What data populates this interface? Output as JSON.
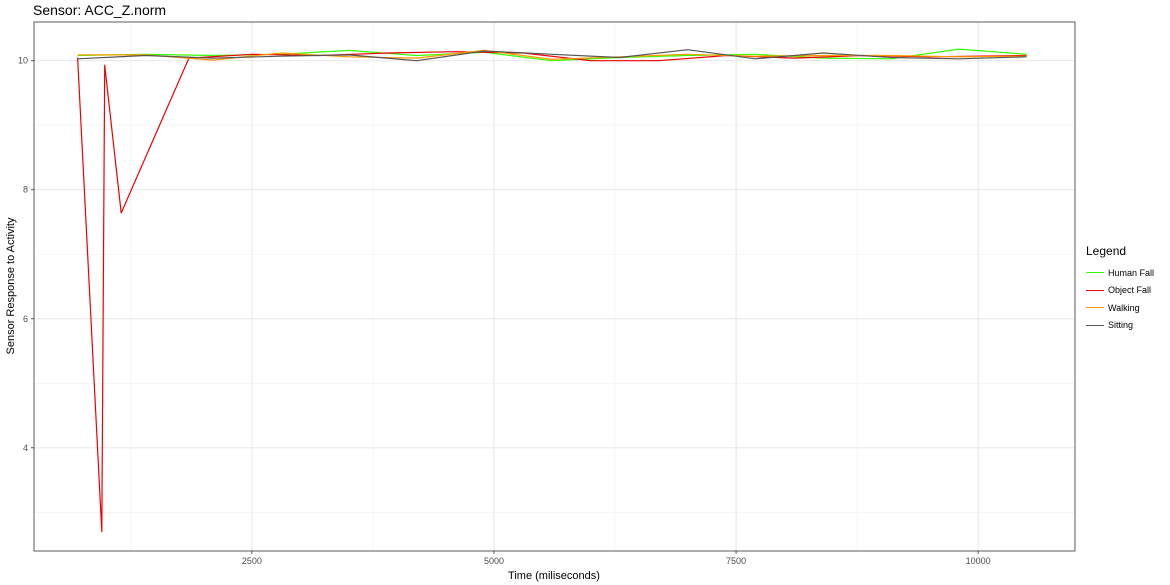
{
  "chart_data": {
    "type": "line",
    "title": "Sensor: ACC_Z.norm",
    "xlabel": "Time (miliseconds)",
    "ylabel": "Sensor Response to Activity",
    "xlim": [
      250,
      11000
    ],
    "ylim": [
      2.4,
      10.6
    ],
    "x_ticks": [
      2500,
      5000,
      7500,
      10000
    ],
    "x_tick_labels": [
      "2500",
      "5000",
      "7500",
      "10000"
    ],
    "y_ticks": [
      4,
      6,
      8,
      10
    ],
    "y_tick_labels": [
      "4",
      "6",
      "8",
      "10"
    ],
    "grid": true,
    "legend": {
      "title": "Legend",
      "placement": "right",
      "entries": [
        "Human Fall",
        "Object Fall",
        "Walking",
        "Sitting"
      ]
    },
    "series": [
      {
        "name": "Human Fall",
        "color": "#33ff00",
        "points": [
          [
            700,
            10.08
          ],
          [
            1400,
            10.1
          ],
          [
            2100,
            10.08
          ],
          [
            2800,
            10.1
          ],
          [
            3500,
            10.16
          ],
          [
            4200,
            10.08
          ],
          [
            4900,
            10.13
          ],
          [
            5600,
            10.0
          ],
          [
            6300,
            10.05
          ],
          [
            7000,
            10.08
          ],
          [
            7700,
            10.1
          ],
          [
            8400,
            10.04
          ],
          [
            9100,
            10.03
          ],
          [
            9800,
            10.18
          ],
          [
            10500,
            10.1
          ]
        ]
      },
      {
        "name": "Object Fall",
        "color": "#ee0000",
        "points": [
          [
            700,
            10.05
          ],
          [
            950,
            2.7
          ],
          [
            980,
            9.93
          ],
          [
            1150,
            7.64
          ],
          [
            1850,
            10.04
          ],
          [
            2500,
            10.1
          ],
          [
            3200,
            10.08
          ],
          [
            3900,
            10.12
          ],
          [
            4600,
            10.14
          ],
          [
            5300,
            10.12
          ],
          [
            6000,
            10.0
          ],
          [
            6700,
            10.0
          ],
          [
            7400,
            10.08
          ],
          [
            8100,
            10.04
          ],
          [
            8800,
            10.08
          ],
          [
            9500,
            10.06
          ],
          [
            10500,
            10.08
          ]
        ]
      },
      {
        "name": "Walking",
        "color": "#ff9900",
        "points": [
          [
            700,
            10.09
          ],
          [
            1400,
            10.09
          ],
          [
            2100,
            10.01
          ],
          [
            2800,
            10.12
          ],
          [
            3500,
            10.06
          ],
          [
            4200,
            10.04
          ],
          [
            4900,
            10.16
          ],
          [
            5600,
            10.02
          ],
          [
            6300,
            10.06
          ],
          [
            7000,
            10.1
          ],
          [
            7700,
            10.07
          ],
          [
            8400,
            10.08
          ],
          [
            9100,
            10.08
          ],
          [
            9800,
            10.06
          ],
          [
            10500,
            10.07
          ]
        ]
      },
      {
        "name": "Sitting",
        "color": "#555555",
        "points": [
          [
            700,
            10.03
          ],
          [
            1400,
            10.08
          ],
          [
            2100,
            10.04
          ],
          [
            2800,
            10.07
          ],
          [
            3500,
            10.09
          ],
          [
            4200,
            10.0
          ],
          [
            4900,
            10.15
          ],
          [
            5600,
            10.1
          ],
          [
            6300,
            10.05
          ],
          [
            7000,
            10.17
          ],
          [
            7700,
            10.03
          ],
          [
            8400,
            10.12
          ],
          [
            9100,
            10.05
          ],
          [
            9800,
            10.03
          ],
          [
            10500,
            10.06
          ]
        ]
      }
    ]
  }
}
